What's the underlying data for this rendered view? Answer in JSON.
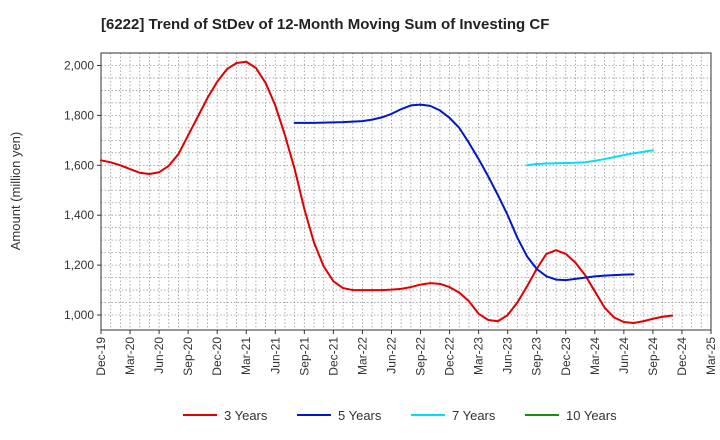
{
  "chart_data": {
    "type": "line",
    "title": "[6222]  Trend of StDev of 12-Month Moving Sum of Investing CF",
    "ylabel": "Amount (million yen)",
    "xlabel": "",
    "ylim": [
      940,
      2050
    ],
    "yticks": [
      1000,
      1200,
      1400,
      1600,
      1800,
      2000
    ],
    "ytick_labels": [
      "1,000",
      "1,200",
      "1,400",
      "1,600",
      "1,800",
      "2,000"
    ],
    "x_tick_labels": [
      "Dec-19",
      "Mar-20",
      "Jun-20",
      "Sep-20",
      "Dec-20",
      "Mar-21",
      "Jun-21",
      "Sep-21",
      "Dec-21",
      "Mar-22",
      "Jun-22",
      "Sep-22",
      "Dec-22",
      "Mar-23",
      "Jun-23",
      "Sep-23",
      "Dec-23",
      "Mar-24",
      "Jun-24",
      "Sep-24",
      "Dec-24",
      "Mar-25"
    ],
    "grid": true,
    "legend_position": "bottom",
    "series": [
      {
        "name": "3 Years",
        "color": "#e00000",
        "start_index": 0,
        "values": [
          1620,
          1612,
          1600,
          1585,
          1570,
          1565,
          1572,
          1598,
          1645,
          1720,
          1795,
          1870,
          1935,
          1985,
          2010,
          2015,
          1990,
          1930,
          1840,
          1720,
          1585,
          1425,
          1290,
          1195,
          1135,
          1108,
          1100,
          1100,
          1100,
          1100,
          1102,
          1105,
          1112,
          1122,
          1128,
          1125,
          1112,
          1090,
          1055,
          1005,
          980,
          975,
          1000,
          1050,
          1115,
          1185,
          1245,
          1260,
          1245,
          1210,
          1160,
          1095,
          1030,
          990,
          972,
          968,
          975,
          985,
          993,
          998
        ]
      },
      {
        "name": "5 Years",
        "color": "#0018c8",
        "start_index": 20,
        "values": [
          1770,
          1770,
          1770,
          1771,
          1772,
          1773,
          1775,
          1777,
          1783,
          1792,
          1806,
          1825,
          1840,
          1843,
          1838,
          1820,
          1790,
          1750,
          1690,
          1625,
          1555,
          1480,
          1400,
          1310,
          1235,
          1185,
          1155,
          1142,
          1140,
          1145,
          1150,
          1155,
          1158,
          1160,
          1162,
          1163
        ]
      },
      {
        "name": "7 Years",
        "color": "#00e0f0",
        "start_index": 44,
        "values": [
          1600,
          1605,
          1607,
          1608,
          1609,
          1610,
          1612,
          1618,
          1625,
          1633,
          1641,
          1648,
          1654,
          1660
        ]
      },
      {
        "name": "10 Years",
        "color": "#1a8a1a",
        "start_index": 0,
        "values": []
      }
    ]
  }
}
